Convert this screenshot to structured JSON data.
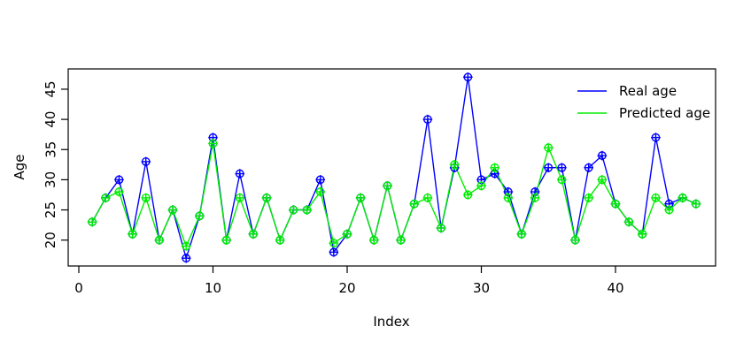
{
  "figure": {
    "xlabel": "Index",
    "ylabel": "Age",
    "background": "#ffffff",
    "box_color": "#000000",
    "legend": {
      "items": [
        {
          "label": "Real age",
          "color": "#0000ff"
        },
        {
          "label": "Predicted age",
          "color": "#00ee00"
        }
      ],
      "position": "top-right",
      "boxed": false
    }
  },
  "chart_data": {
    "type": "line",
    "title": "",
    "xlabel": "Index",
    "ylabel": "Age",
    "marker": "circle-plus",
    "grid": false,
    "legend_position": "top-right",
    "xlim": [
      0,
      47.5
    ],
    "ylim": [
      15.5,
      48.5
    ],
    "xticks": [
      0,
      10,
      20,
      30,
      40
    ],
    "yticks": [
      20,
      25,
      30,
      35,
      40,
      45
    ],
    "x": [
      1,
      2,
      3,
      4,
      5,
      6,
      7,
      8,
      9,
      10,
      11,
      12,
      13,
      14,
      15,
      16,
      17,
      18,
      19,
      20,
      21,
      22,
      23,
      24,
      25,
      26,
      27,
      28,
      29,
      30,
      31,
      32,
      33,
      34,
      35,
      36,
      37,
      38,
      39,
      40,
      41,
      42,
      43,
      44,
      45,
      46
    ],
    "series": [
      {
        "name": "Real age",
        "color": "#0000ff",
        "values": [
          23,
          27,
          30,
          21,
          33,
          20,
          25,
          17,
          24,
          37,
          20,
          31,
          21,
          27,
          20,
          25,
          25,
          30,
          18,
          21,
          27,
          20,
          29,
          20,
          26,
          40,
          22,
          32,
          47,
          30,
          31,
          28,
          21,
          28,
          32,
          32,
          20,
          32,
          34,
          26,
          23,
          21,
          37,
          26,
          27,
          26
        ]
      },
      {
        "name": "Predicted age",
        "color": "#00ee00",
        "values": [
          23,
          27,
          28,
          21,
          27,
          20,
          25,
          19,
          24,
          36,
          20,
          27,
          21,
          27,
          20,
          25,
          25,
          28,
          19.5,
          21,
          27,
          20,
          29,
          20,
          26,
          27,
          22,
          32.5,
          27.5,
          29,
          32,
          27,
          21,
          27,
          35.3,
          30,
          20,
          27,
          30,
          26,
          23,
          21,
          27,
          25,
          27,
          26
        ]
      }
    ]
  }
}
